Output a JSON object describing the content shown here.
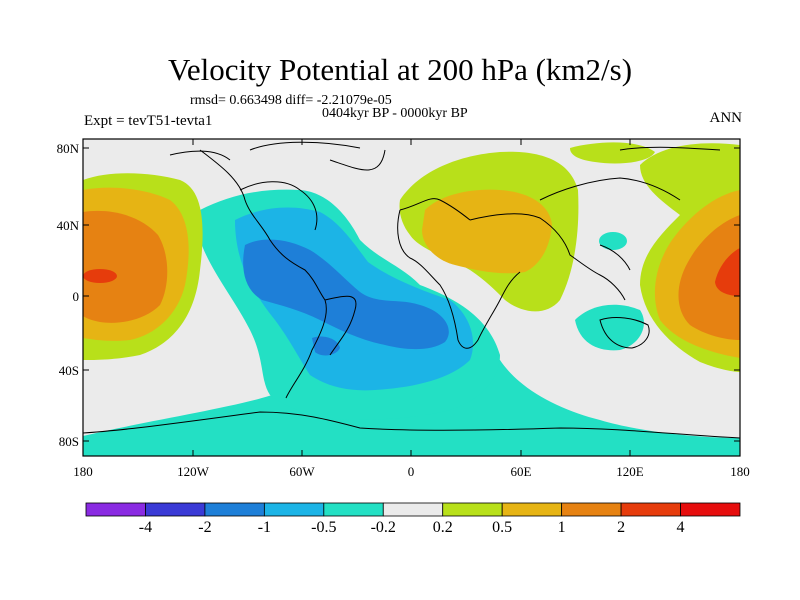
{
  "title": "Velocity Potential at 200 hPa (km2/s)",
  "stats": "rmsd= 0.663498 diff= -2.21079e-05",
  "period": "0404kyr BP - 0000kyr BP",
  "experiment": "Expt = tevT51-tevta1",
  "season": "ANN",
  "axes": {
    "lat_ticks": [
      "80N",
      "40N",
      "0",
      "40S",
      "80S"
    ],
    "lon_ticks": [
      "180",
      "120W",
      "60W",
      "0",
      "60E",
      "120E",
      "180"
    ]
  },
  "colorbar": {
    "labels": [
      "-4",
      "-2",
      "-1",
      "-0.5",
      "-0.2",
      "0.2",
      "0.5",
      "1",
      "2",
      "4"
    ],
    "colors": [
      "#8a2be2",
      "#3a3ad6",
      "#1e7fd8",
      "#1cb4e6",
      "#23e0c4",
      "#ebebeb",
      "#b8e01a",
      "#e6b414",
      "#e68212",
      "#e63c0c",
      "#e60d0d"
    ]
  }
}
